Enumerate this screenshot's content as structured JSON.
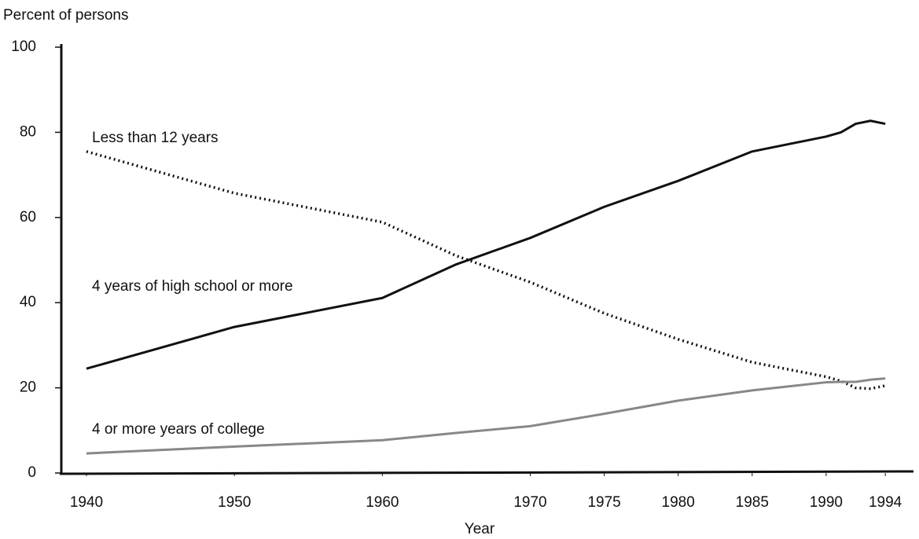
{
  "chart_data": {
    "type": "line",
    "y_label": "Percent of persons",
    "x_label": "Year",
    "x": [
      1940,
      1950,
      1960,
      1965,
      1970,
      1975,
      1980,
      1985,
      1990,
      1991,
      1992,
      1993,
      1994
    ],
    "series": [
      {
        "name": "Less than 12 years",
        "color": "#111111",
        "style": "dotted",
        "values": [
          75.5,
          65.7,
          58.9,
          51,
          44.8,
          37.5,
          31.4,
          26,
          22.6,
          21.6,
          20,
          19.8,
          20.5
        ]
      },
      {
        "name": "4 years of high school or more",
        "color": "#111111",
        "style": "solid",
        "values": [
          24.5,
          34.3,
          41.1,
          49,
          55.2,
          62.5,
          68.6,
          75.5,
          79,
          80,
          82,
          82.7,
          82
        ]
      },
      {
        "name": "4 or more years of college",
        "color": "#888888",
        "style": "solid",
        "values": [
          4.6,
          6.2,
          7.7,
          9.4,
          11,
          13.9,
          17,
          19.4,
          21.3,
          21.4,
          21.4,
          21.9,
          22.2
        ]
      }
    ],
    "xlim": [
      1938.3,
      1995.8
    ],
    "xticks": [
      1940,
      1950,
      1960,
      1970,
      1975,
      1980,
      1985,
      1990,
      1994
    ],
    "ylim": [
      0,
      100
    ],
    "yticks": [
      0,
      20,
      40,
      60,
      80,
      100
    ],
    "grid": false
  }
}
